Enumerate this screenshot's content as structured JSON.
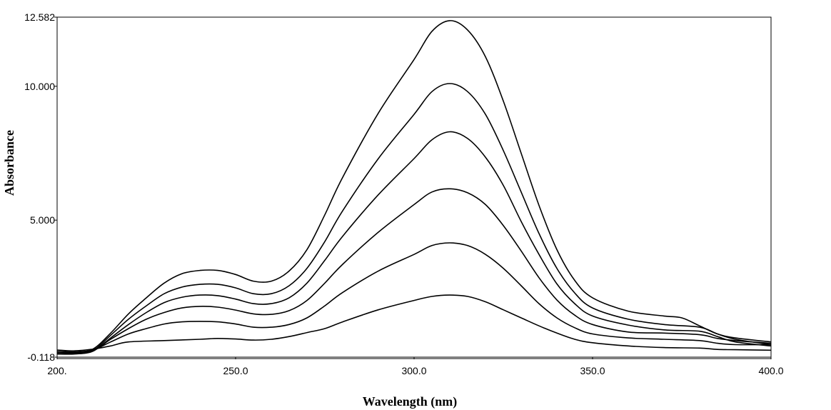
{
  "chart_data": {
    "type": "line",
    "title": "",
    "xlabel": "Wavelength (nm)",
    "ylabel": "Absorbance",
    "xlim": [
      200,
      400
    ],
    "ylim": [
      -0.118,
      12.582
    ],
    "grid": false,
    "x_tick_labels": [
      "200.",
      "250.0",
      "300.0",
      "350.0",
      "400.0"
    ],
    "x_tick_values": [
      200,
      250,
      300,
      350,
      400
    ],
    "y_tick_labels": [
      "-0.118",
      "5.000",
      "10.000",
      "12.582"
    ],
    "y_tick_values": [
      -0.118,
      5.0,
      10.0,
      12.582
    ],
    "series": [
      {
        "points": [
          [
            200,
            0.15
          ],
          [
            205,
            0.12
          ],
          [
            210,
            0.18
          ],
          [
            215,
            0.3
          ],
          [
            220,
            0.45
          ],
          [
            230,
            0.5
          ],
          [
            240,
            0.55
          ],
          [
            245,
            0.58
          ],
          [
            250,
            0.56
          ],
          [
            255,
            0.52
          ],
          [
            260,
            0.55
          ],
          [
            265,
            0.65
          ],
          [
            270,
            0.8
          ],
          [
            275,
            0.95
          ],
          [
            280,
            1.2
          ],
          [
            290,
            1.65
          ],
          [
            300,
            2.0
          ],
          [
            305,
            2.15
          ],
          [
            310,
            2.2
          ],
          [
            315,
            2.15
          ],
          [
            320,
            1.95
          ],
          [
            325,
            1.65
          ],
          [
            330,
            1.35
          ],
          [
            335,
            1.05
          ],
          [
            340,
            0.78
          ],
          [
            345,
            0.55
          ],
          [
            350,
            0.42
          ],
          [
            360,
            0.3
          ],
          [
            370,
            0.24
          ],
          [
            380,
            0.22
          ],
          [
            385,
            0.17
          ],
          [
            390,
            0.16
          ],
          [
            400,
            0.14
          ]
        ]
      },
      {
        "points": [
          [
            200,
            0.1
          ],
          [
            205,
            0.08
          ],
          [
            210,
            0.15
          ],
          [
            215,
            0.45
          ],
          [
            220,
            0.75
          ],
          [
            225,
            0.95
          ],
          [
            230,
            1.12
          ],
          [
            235,
            1.2
          ],
          [
            240,
            1.22
          ],
          [
            245,
            1.2
          ],
          [
            250,
            1.12
          ],
          [
            255,
            1.0
          ],
          [
            260,
            1.0
          ],
          [
            265,
            1.1
          ],
          [
            270,
            1.35
          ],
          [
            275,
            1.8
          ],
          [
            280,
            2.3
          ],
          [
            290,
            3.1
          ],
          [
            300,
            3.72
          ],
          [
            305,
            4.05
          ],
          [
            310,
            4.15
          ],
          [
            315,
            4.05
          ],
          [
            320,
            3.72
          ],
          [
            325,
            3.2
          ],
          [
            330,
            2.55
          ],
          [
            335,
            1.88
          ],
          [
            340,
            1.35
          ],
          [
            345,
            0.98
          ],
          [
            350,
            0.75
          ],
          [
            360,
            0.6
          ],
          [
            370,
            0.55
          ],
          [
            380,
            0.5
          ],
          [
            385,
            0.4
          ],
          [
            390,
            0.35
          ],
          [
            400,
            0.35
          ]
        ]
      },
      {
        "points": [
          [
            200,
            0.05
          ],
          [
            205,
            0.05
          ],
          [
            210,
            0.12
          ],
          [
            215,
            0.55
          ],
          [
            220,
            0.95
          ],
          [
            225,
            1.3
          ],
          [
            230,
            1.55
          ],
          [
            235,
            1.72
          ],
          [
            240,
            1.78
          ],
          [
            245,
            1.75
          ],
          [
            250,
            1.64
          ],
          [
            255,
            1.5
          ],
          [
            260,
            1.48
          ],
          [
            265,
            1.62
          ],
          [
            270,
            2.0
          ],
          [
            275,
            2.65
          ],
          [
            280,
            3.35
          ],
          [
            290,
            4.55
          ],
          [
            300,
            5.58
          ],
          [
            305,
            6.05
          ],
          [
            310,
            6.17
          ],
          [
            315,
            6.02
          ],
          [
            320,
            5.58
          ],
          [
            325,
            4.8
          ],
          [
            330,
            3.85
          ],
          [
            335,
            2.85
          ],
          [
            340,
            2.02
          ],
          [
            345,
            1.45
          ],
          [
            350,
            1.1
          ],
          [
            360,
            0.82
          ],
          [
            370,
            0.78
          ],
          [
            380,
            0.72
          ],
          [
            385,
            0.58
          ],
          [
            390,
            0.5
          ],
          [
            400,
            0.4
          ]
        ]
      },
      {
        "points": [
          [
            200,
            0.0
          ],
          [
            205,
            0.02
          ],
          [
            210,
            0.1
          ],
          [
            215,
            0.6
          ],
          [
            220,
            1.1
          ],
          [
            225,
            1.55
          ],
          [
            230,
            1.92
          ],
          [
            235,
            2.12
          ],
          [
            240,
            2.2
          ],
          [
            245,
            2.18
          ],
          [
            250,
            2.05
          ],
          [
            255,
            1.88
          ],
          [
            260,
            1.88
          ],
          [
            265,
            2.1
          ],
          [
            270,
            2.65
          ],
          [
            275,
            3.5
          ],
          [
            280,
            4.4
          ],
          [
            290,
            5.95
          ],
          [
            300,
            7.3
          ],
          [
            305,
            8.0
          ],
          [
            310,
            8.3
          ],
          [
            315,
            8.05
          ],
          [
            320,
            7.35
          ],
          [
            325,
            6.3
          ],
          [
            330,
            4.95
          ],
          [
            335,
            3.72
          ],
          [
            340,
            2.62
          ],
          [
            345,
            1.88
          ],
          [
            350,
            1.42
          ],
          [
            360,
            1.08
          ],
          [
            370,
            0.9
          ],
          [
            380,
            0.85
          ],
          [
            385,
            0.65
          ],
          [
            390,
            0.45
          ],
          [
            400,
            0.3
          ]
        ]
      },
      {
        "points": [
          [
            200,
            0.0
          ],
          [
            205,
            0.0
          ],
          [
            210,
            0.12
          ],
          [
            215,
            0.7
          ],
          [
            220,
            1.3
          ],
          [
            225,
            1.8
          ],
          [
            230,
            2.25
          ],
          [
            235,
            2.5
          ],
          [
            240,
            2.6
          ],
          [
            245,
            2.6
          ],
          [
            250,
            2.47
          ],
          [
            255,
            2.25
          ],
          [
            260,
            2.25
          ],
          [
            265,
            2.55
          ],
          [
            270,
            3.2
          ],
          [
            275,
            4.2
          ],
          [
            280,
            5.35
          ],
          [
            290,
            7.3
          ],
          [
            300,
            8.95
          ],
          [
            305,
            9.8
          ],
          [
            310,
            10.1
          ],
          [
            315,
            9.8
          ],
          [
            320,
            8.95
          ],
          [
            325,
            7.6
          ],
          [
            330,
            6.05
          ],
          [
            335,
            4.5
          ],
          [
            340,
            3.2
          ],
          [
            345,
            2.28
          ],
          [
            350,
            1.72
          ],
          [
            360,
            1.3
          ],
          [
            370,
            1.1
          ],
          [
            380,
            1.0
          ],
          [
            385,
            0.75
          ],
          [
            390,
            0.55
          ],
          [
            400,
            0.35
          ]
        ]
      },
      {
        "points": [
          [
            200,
            0.05
          ],
          [
            205,
            0.05
          ],
          [
            210,
            0.18
          ],
          [
            215,
            0.78
          ],
          [
            220,
            1.5
          ],
          [
            225,
            2.1
          ],
          [
            230,
            2.65
          ],
          [
            235,
            3.0
          ],
          [
            240,
            3.12
          ],
          [
            245,
            3.12
          ],
          [
            250,
            2.97
          ],
          [
            255,
            2.72
          ],
          [
            260,
            2.72
          ],
          [
            265,
            3.1
          ],
          [
            270,
            3.9
          ],
          [
            275,
            5.2
          ],
          [
            280,
            6.6
          ],
          [
            290,
            9.0
          ],
          [
            300,
            11.0
          ],
          [
            305,
            12.05
          ],
          [
            310,
            12.45
          ],
          [
            315,
            12.1
          ],
          [
            320,
            11.1
          ],
          [
            325,
            9.45
          ],
          [
            330,
            7.5
          ],
          [
            335,
            5.55
          ],
          [
            340,
            3.9
          ],
          [
            345,
            2.75
          ],
          [
            350,
            2.1
          ],
          [
            360,
            1.6
          ],
          [
            370,
            1.42
          ],
          [
            375,
            1.35
          ],
          [
            380,
            1.05
          ],
          [
            385,
            0.75
          ],
          [
            390,
            0.6
          ],
          [
            400,
            0.45
          ]
        ]
      }
    ]
  }
}
